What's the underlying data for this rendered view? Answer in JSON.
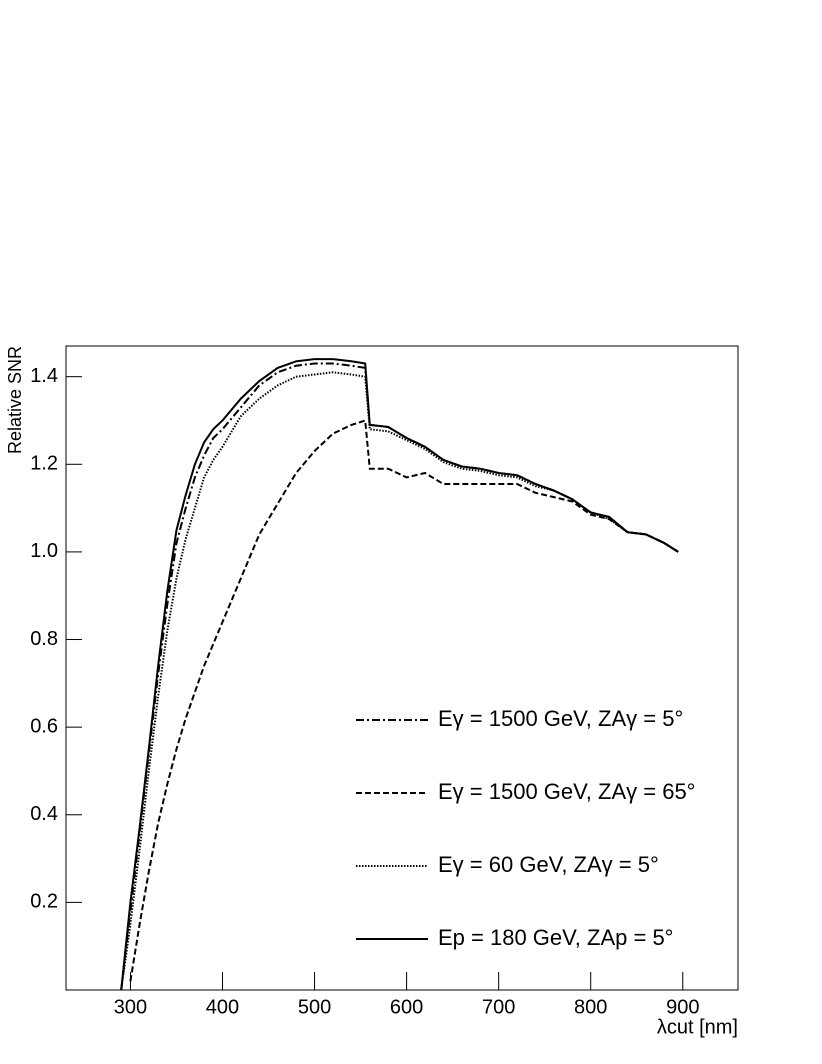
{
  "chart_data": {
    "type": "line",
    "y_label": "Relative SNR",
    "x_label": "λcut [nm]",
    "x": [
      290,
      300,
      310,
      320,
      330,
      340,
      350,
      360,
      370,
      380,
      390,
      400,
      420,
      440,
      460,
      480,
      500,
      520,
      540,
      555,
      560,
      580,
      600,
      620,
      640,
      660,
      680,
      700,
      720,
      740,
      760,
      780,
      800,
      820,
      840,
      860,
      880,
      895
    ],
    "series": [
      {
        "name": "Eγ = 1500 GeV, ZAγ = 5°",
        "color": "#000000",
        "dash": "dashdot",
        "values": [
          0.0,
          0.18,
          0.36,
          0.54,
          0.72,
          0.88,
          1.02,
          1.1,
          1.17,
          1.22,
          1.26,
          1.28,
          1.33,
          1.38,
          1.41,
          1.425,
          1.43,
          1.43,
          1.425,
          1.42,
          1.29,
          1.285,
          1.26,
          1.24,
          1.21,
          1.195,
          1.19,
          1.18,
          1.175,
          1.155,
          1.14,
          1.12,
          1.09,
          1.08,
          1.045,
          1.04,
          1.02,
          1.0
        ]
      },
      {
        "name": "Eγ = 1500 GeV, ZAγ = 65°",
        "color": "#000000",
        "dash": "dashed",
        "values": [
          null,
          0.02,
          0.15,
          0.27,
          0.38,
          0.47,
          0.55,
          0.62,
          0.68,
          0.74,
          0.79,
          0.84,
          0.94,
          1.04,
          1.11,
          1.18,
          1.23,
          1.27,
          1.29,
          1.3,
          1.19,
          1.19,
          1.17,
          1.18,
          1.155,
          1.155,
          1.155,
          1.155,
          1.155,
          1.135,
          1.125,
          1.115,
          1.085,
          1.075,
          1.045,
          1.04,
          1.02,
          1.0
        ]
      },
      {
        "name": "Eγ = 60 GeV, ZAγ = 5°",
        "color": "#000000",
        "dash": "dotted",
        "values": [
          0.0,
          0.15,
          0.32,
          0.5,
          0.67,
          0.82,
          0.94,
          1.03,
          1.1,
          1.17,
          1.21,
          1.24,
          1.31,
          1.35,
          1.38,
          1.4,
          1.405,
          1.41,
          1.405,
          1.4,
          1.28,
          1.275,
          1.255,
          1.235,
          1.205,
          1.19,
          1.185,
          1.175,
          1.17,
          1.15,
          1.14,
          1.12,
          1.09,
          1.075,
          1.045,
          1.04,
          1.02,
          1.0
        ]
      },
      {
        "name": "Ep = 180 GeV, ZAp = 5°",
        "color": "#000000",
        "dash": "solid",
        "values": [
          0.0,
          0.2,
          0.37,
          0.55,
          0.74,
          0.91,
          1.05,
          1.13,
          1.2,
          1.25,
          1.28,
          1.3,
          1.35,
          1.39,
          1.42,
          1.435,
          1.44,
          1.44,
          1.435,
          1.43,
          1.29,
          1.285,
          1.26,
          1.24,
          1.21,
          1.195,
          1.19,
          1.18,
          1.175,
          1.155,
          1.14,
          1.12,
          1.09,
          1.08,
          1.045,
          1.04,
          1.02,
          1.0
        ]
      }
    ],
    "xlim": [
      230,
      960
    ],
    "ylim": [
      0,
      1.47
    ],
    "xticks": [
      300,
      400,
      500,
      600,
      700,
      800,
      900
    ],
    "yticks": [
      0.2,
      0.4,
      0.6,
      0.8,
      {
        "value": 1,
        "label": "1.0"
      },
      1.2,
      1.4
    ],
    "legend": "lower right"
  }
}
